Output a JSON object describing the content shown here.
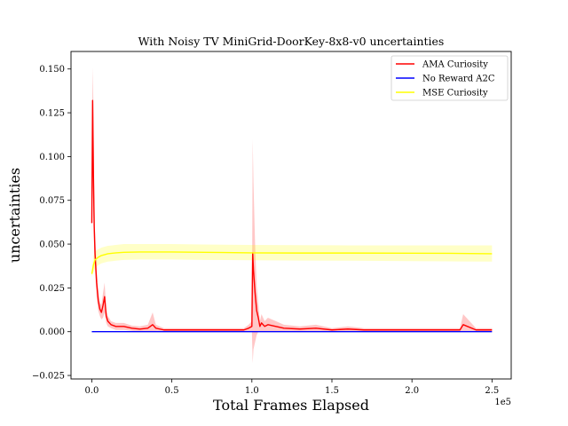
{
  "chart_data": {
    "type": "line",
    "title": "With Noisy TV MiniGrid-DoorKey-8x8-v0 uncertainties",
    "xlabel": "Total Frames Elapsed",
    "ylabel": "uncertainties",
    "x_scale_label": "1e5",
    "xlim": [
      -0.13,
      2.62
    ],
    "ylim": [
      -0.027,
      0.16
    ],
    "x_ticks": [
      0,
      0.5,
      1.0,
      1.5,
      2.0,
      2.5
    ],
    "x_tick_labels": [
      "0.0",
      "0.5",
      "1.0",
      "1.5",
      "2.0",
      "2.5"
    ],
    "y_ticks": [
      -0.025,
      0,
      0.025,
      0.05,
      0.075,
      0.1,
      0.125,
      0.15
    ],
    "y_tick_labels": [
      "−0.025",
      "0.000",
      "0.025",
      "0.050",
      "0.075",
      "0.100",
      "0.125",
      "0.150"
    ],
    "grid": false,
    "legend_position": "top-right",
    "series": [
      {
        "name": "AMA Curiosity",
        "color": "#ff0000",
        "band_color": "#ff0000",
        "x": [
          0,
          0.005,
          0.01,
          0.015,
          0.02,
          0.03,
          0.04,
          0.05,
          0.06,
          0.07,
          0.08,
          0.09,
          0.1,
          0.12,
          0.15,
          0.2,
          0.25,
          0.3,
          0.35,
          0.38,
          0.4,
          0.45,
          0.5,
          0.6,
          0.7,
          0.8,
          0.9,
          0.95,
          0.98,
          1.0,
          1.005,
          1.01,
          1.02,
          1.03,
          1.04,
          1.05,
          1.06,
          1.08,
          1.1,
          1.15,
          1.2,
          1.3,
          1.4,
          1.5,
          1.6,
          1.7,
          1.8,
          1.9,
          2.0,
          2.1,
          2.2,
          2.3,
          2.32,
          2.4,
          2.5
        ],
        "y": [
          0.062,
          0.132,
          0.09,
          0.06,
          0.045,
          0.028,
          0.018,
          0.013,
          0.011,
          0.015,
          0.02,
          0.009,
          0.006,
          0.004,
          0.003,
          0.003,
          0.002,
          0.0015,
          0.002,
          0.004,
          0.002,
          0.001,
          0.001,
          0.001,
          0.001,
          0.001,
          0.001,
          0.001,
          0.002,
          0.003,
          0.045,
          0.035,
          0.022,
          0.012,
          0.008,
          0.003,
          0.005,
          0.003,
          0.004,
          0.003,
          0.002,
          0.0015,
          0.002,
          0.001,
          0.0015,
          0.001,
          0.001,
          0.001,
          0.001,
          0.001,
          0.001,
          0.001,
          0.004,
          0.001,
          0.001
        ],
        "lower": [
          0.05,
          0.12,
          0.07,
          0.045,
          0.035,
          0.02,
          0.012,
          0.009,
          0.007,
          0.008,
          0.011,
          0.005,
          0.003,
          0.002,
          0.001,
          0.001,
          0.0005,
          0.0,
          0.0,
          0.0,
          0.0,
          0.0,
          0.0,
          0.0,
          0.0,
          0.0,
          0.0,
          0.0,
          0.0,
          0.0,
          -0.018,
          -0.01,
          -0.006,
          -0.002,
          0.0,
          0.0,
          0.0,
          0.0,
          0.0,
          0.0,
          0.0,
          0.0,
          0.0,
          0.0,
          0.0,
          0.0,
          0.0,
          0.0,
          0.0,
          0.0,
          0.0,
          0.0,
          0.0,
          0.0,
          0.0
        ],
        "upper": [
          0.08,
          0.151,
          0.13,
          0.08,
          0.058,
          0.036,
          0.024,
          0.017,
          0.015,
          0.022,
          0.028,
          0.013,
          0.009,
          0.006,
          0.005,
          0.005,
          0.0035,
          0.003,
          0.004,
          0.011,
          0.004,
          0.002,
          0.002,
          0.002,
          0.002,
          0.002,
          0.002,
          0.002,
          0.004,
          0.006,
          0.11,
          0.085,
          0.05,
          0.026,
          0.016,
          0.006,
          0.01,
          0.006,
          0.008,
          0.006,
          0.004,
          0.003,
          0.004,
          0.002,
          0.003,
          0.002,
          0.002,
          0.002,
          0.002,
          0.002,
          0.002,
          0.002,
          0.01,
          0.002,
          0.002
        ]
      },
      {
        "name": "No Reward A2C",
        "color": "#0000ff",
        "band_color": "#0000ff",
        "x": [
          0,
          2.5
        ],
        "y": [
          0.0,
          0.0
        ],
        "lower": [
          0.0,
          0.0
        ],
        "upper": [
          0.0,
          0.0
        ]
      },
      {
        "name": "MSE Curiosity",
        "color": "#ffff00",
        "band_color": "#ffff00",
        "x": [
          0,
          0.01,
          0.02,
          0.04,
          0.06,
          0.1,
          0.15,
          0.2,
          0.3,
          0.4,
          0.5,
          0.7,
          1.0,
          1.3,
          1.6,
          2.0,
          2.3,
          2.5
        ],
        "y": [
          0.033,
          0.038,
          0.041,
          0.0425,
          0.0435,
          0.0445,
          0.045,
          0.0453,
          0.0455,
          0.0455,
          0.0455,
          0.0453,
          0.045,
          0.0449,
          0.0449,
          0.0448,
          0.0447,
          0.0445
        ],
        "lower": [
          0.031,
          0.034,
          0.036,
          0.038,
          0.039,
          0.04,
          0.0405,
          0.041,
          0.0412,
          0.0412,
          0.0412,
          0.041,
          0.0408,
          0.0406,
          0.0405,
          0.0403,
          0.0401,
          0.04
        ],
        "upper": [
          0.035,
          0.043,
          0.046,
          0.047,
          0.048,
          0.049,
          0.0495,
          0.05,
          0.05,
          0.05,
          0.05,
          0.0498,
          0.0495,
          0.0494,
          0.0493,
          0.0493,
          0.0493,
          0.0493
        ]
      }
    ]
  }
}
